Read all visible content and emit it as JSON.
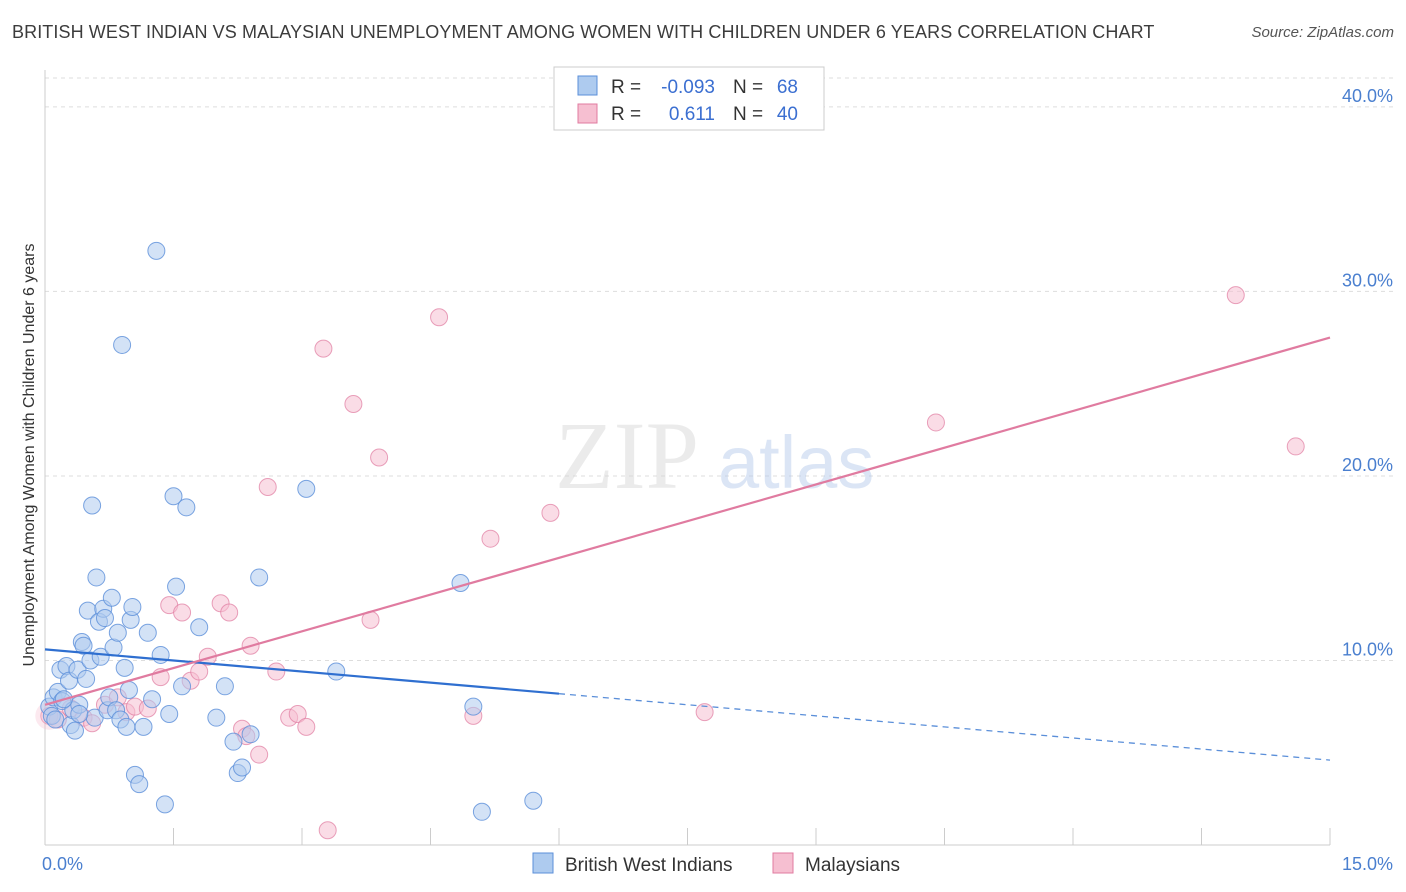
{
  "title": "BRITISH WEST INDIAN VS MALAYSIAN UNEMPLOYMENT AMONG WOMEN WITH CHILDREN UNDER 6 YEARS CORRELATION CHART",
  "source": "Source: ZipAtlas.com",
  "watermark": {
    "zip": "ZIP",
    "atlas": "atlas"
  },
  "colors": {
    "blue": "#5b8fd9",
    "blue_fill": "#aecbef",
    "pink": "#e07ba0",
    "pink_fill": "#f6bfd1",
    "tick": "#4a7fcf",
    "grid": "#dddddd"
  },
  "legend": {
    "row1": {
      "r_label": "R =",
      "r_value": "-0.093",
      "n_label": "N =",
      "n_value": "68"
    },
    "row2": {
      "r_label": "R =",
      "r_value": "0.611",
      "n_label": "N =",
      "n_value": "40"
    }
  },
  "chart_data": {
    "type": "scatter",
    "title": "BRITISH WEST INDIAN VS MALAYSIAN UNEMPLOYMENT AMONG WOMEN WITH CHILDREN UNDER 6 YEARS CORRELATION CHART",
    "xlabel": "",
    "ylabel": "Unemployment Among Women with Children Under 6 years",
    "xlim": [
      0,
      15
    ],
    "ylim": [
      0,
      42
    ],
    "x_tick_labels": [
      "0.0%",
      "15.0%"
    ],
    "y_ticks": [
      10,
      20,
      30,
      40
    ],
    "y_tick_labels": [
      "10.0%",
      "20.0%",
      "30.0%",
      "40.0%"
    ],
    "grid": true,
    "legend_position": "top-center",
    "series": [
      {
        "name": "British West Indians",
        "color": "#5b8fd9",
        "R": -0.093,
        "N": 68,
        "trend": {
          "x0": 0,
          "y0": 10.6,
          "x1": 6.0,
          "y1": 8.2,
          "dash_to_x": 15,
          "dash_to_y": 4.6
        },
        "points": [
          [
            0.05,
            7.5
          ],
          [
            0.08,
            7.0
          ],
          [
            0.1,
            8.0
          ],
          [
            0.12,
            6.8
          ],
          [
            0.15,
            8.3
          ],
          [
            0.18,
            9.5
          ],
          [
            0.2,
            7.8
          ],
          [
            0.25,
            9.7
          ],
          [
            0.28,
            8.9
          ],
          [
            0.3,
            6.5
          ],
          [
            0.33,
            7.3
          ],
          [
            0.35,
            6.2
          ],
          [
            0.38,
            9.5
          ],
          [
            0.4,
            7.6
          ],
          [
            0.43,
            11.0
          ],
          [
            0.45,
            10.8
          ],
          [
            0.48,
            9.0
          ],
          [
            0.5,
            12.7
          ],
          [
            0.53,
            10.0
          ],
          [
            0.55,
            18.4
          ],
          [
            0.58,
            6.9
          ],
          [
            0.6,
            14.5
          ],
          [
            0.63,
            12.1
          ],
          [
            0.65,
            10.2
          ],
          [
            0.68,
            12.8
          ],
          [
            0.7,
            12.3
          ],
          [
            0.73,
            7.3
          ],
          [
            0.75,
            8.0
          ],
          [
            0.78,
            13.4
          ],
          [
            0.8,
            10.7
          ],
          [
            0.83,
            7.3
          ],
          [
            0.85,
            11.5
          ],
          [
            0.88,
            6.8
          ],
          [
            0.9,
            27.1
          ],
          [
            0.93,
            9.6
          ],
          [
            0.95,
            6.4
          ],
          [
            0.98,
            8.4
          ],
          [
            1.0,
            12.2
          ],
          [
            1.02,
            12.9
          ],
          [
            1.05,
            3.8
          ],
          [
            1.1,
            3.3
          ],
          [
            1.15,
            6.4
          ],
          [
            1.2,
            11.5
          ],
          [
            1.25,
            7.9
          ],
          [
            1.3,
            32.2
          ],
          [
            1.35,
            10.3
          ],
          [
            1.4,
            2.2
          ],
          [
            1.45,
            7.1
          ],
          [
            1.5,
            18.9
          ],
          [
            1.53,
            14.0
          ],
          [
            1.6,
            8.6
          ],
          [
            1.65,
            18.3
          ],
          [
            1.8,
            11.8
          ],
          [
            2.0,
            6.9
          ],
          [
            2.1,
            8.6
          ],
          [
            2.2,
            5.6
          ],
          [
            2.25,
            3.9
          ],
          [
            2.3,
            4.2
          ],
          [
            2.4,
            6.0
          ],
          [
            2.5,
            14.5
          ],
          [
            3.05,
            19.3
          ],
          [
            3.4,
            9.4
          ],
          [
            4.85,
            14.2
          ],
          [
            5.0,
            7.5
          ],
          [
            5.1,
            1.8
          ],
          [
            5.7,
            2.4
          ],
          [
            0.4,
            7.1
          ],
          [
            0.22,
            7.9
          ]
        ]
      },
      {
        "name": "Malaysians",
        "color": "#e07ba0",
        "R": 0.611,
        "N": 40,
        "trend": {
          "x0": 0,
          "y0": 7.6,
          "x1": 15,
          "y1": 27.5
        },
        "points": [
          [
            0.05,
            7.0
          ],
          [
            0.15,
            6.8
          ],
          [
            0.3,
            7.4
          ],
          [
            0.45,
            6.9
          ],
          [
            0.55,
            6.6
          ],
          [
            0.7,
            7.6
          ],
          [
            0.85,
            8.0
          ],
          [
            0.95,
            7.2
          ],
          [
            1.05,
            7.5
          ],
          [
            1.2,
            7.4
          ],
          [
            1.35,
            9.1
          ],
          [
            1.45,
            13.0
          ],
          [
            1.6,
            12.6
          ],
          [
            1.7,
            8.9
          ],
          [
            1.8,
            9.4
          ],
          [
            1.9,
            10.2
          ],
          [
            2.05,
            13.1
          ],
          [
            2.15,
            12.6
          ],
          [
            2.3,
            6.3
          ],
          [
            2.35,
            5.9
          ],
          [
            2.4,
            10.8
          ],
          [
            2.5,
            4.9
          ],
          [
            2.6,
            19.4
          ],
          [
            2.7,
            9.4
          ],
          [
            2.85,
            6.9
          ],
          [
            2.95,
            7.1
          ],
          [
            3.05,
            6.4
          ],
          [
            3.25,
            26.9
          ],
          [
            3.3,
            0.8
          ],
          [
            3.6,
            23.9
          ],
          [
            3.8,
            12.2
          ],
          [
            3.9,
            21.0
          ],
          [
            4.6,
            28.6
          ],
          [
            5.0,
            7.0
          ],
          [
            5.2,
            16.6
          ],
          [
            5.9,
            18.0
          ],
          [
            7.7,
            7.2
          ],
          [
            10.4,
            22.9
          ],
          [
            13.9,
            29.8
          ],
          [
            14.6,
            21.6
          ]
        ]
      }
    ]
  }
}
